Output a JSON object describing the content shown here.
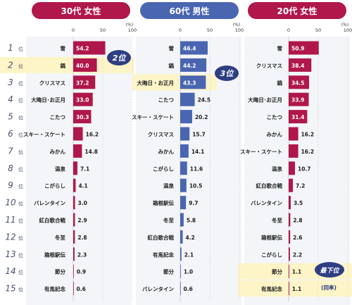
{
  "rank_suffix": "位",
  "ranks": [
    "1",
    "2",
    "3",
    "4",
    "5",
    "6",
    "7",
    "8",
    "9",
    "10",
    "11",
    "12",
    "13",
    "14",
    "15"
  ],
  "axis": {
    "ticks": [
      "0",
      "50",
      "100"
    ],
    "unit": "(%)"
  },
  "colors": {
    "panel1": "#b0174a",
    "panel2": "#4a66b1",
    "panel3": "#b0174a",
    "rank_text": "#4a5270",
    "grid": "#cfd3dc",
    "highlight": "#fdf4c7",
    "callout": "#2e3e82",
    "panel_bg": "#f4f5f8"
  },
  "callouts": [
    "2位",
    "3位",
    "最下位",
    "(同率)"
  ],
  "chart_data": [
    {
      "type": "bar",
      "title": "30代 女性",
      "xlim": [
        0,
        100
      ],
      "categories": [
        "雪",
        "鍋",
        "クリスマス",
        "大晦日･お正月",
        "こたつ",
        "スキー・スケート",
        "みかん",
        "温泉",
        "こがらし",
        "バレンタイン",
        "紅白歌合戦",
        "冬至",
        "箱根駅伝",
        "節分",
        "有馬記念"
      ],
      "values": [
        54.2,
        40.0,
        37.2,
        33.0,
        30.3,
        16.2,
        14.8,
        7.1,
        4.1,
        3.0,
        2.9,
        2.8,
        2.3,
        0.9,
        0.6
      ],
      "value_labels": [
        "54.2",
        "40.0",
        "37.2",
        "33.0",
        "30.3",
        "16.2",
        "14.8",
        "7.1",
        "4.1",
        "3.0",
        "2.9",
        "2.8",
        "2.3",
        "0.9",
        "0.6"
      ]
    },
    {
      "type": "bar",
      "title": "60代 男性",
      "xlim": [
        0,
        100
      ],
      "categories": [
        "雪",
        "鍋",
        "大晦日・お正月",
        "こたつ",
        "スキー・スケート",
        "クリスマス",
        "みかん",
        "こがらし",
        "温泉",
        "箱根駅伝",
        "冬至",
        "紅白歌合戦",
        "有馬記念",
        "節分",
        "バレンタイン"
      ],
      "values": [
        46.4,
        44.2,
        43.3,
        24.5,
        20.2,
        15.7,
        14.1,
        11.6,
        10.5,
        9.7,
        5.8,
        4.2,
        2.1,
        1.0,
        0.6
      ],
      "value_labels": [
        "46.4",
        "44.2",
        "43.3",
        "24.5",
        "20.2",
        "15.7",
        "14.1",
        "11.6",
        "10.5",
        "9.7",
        "5.8",
        "4.2",
        "2.1",
        "1.0",
        "0.6"
      ]
    },
    {
      "type": "bar",
      "title": "20代 女性",
      "xlim": [
        0,
        100
      ],
      "categories": [
        "雪",
        "クリスマス",
        "鍋",
        "大晦日･お正月",
        "こたつ",
        "みかん",
        "スキー・スケート",
        "温泉",
        "紅白歌合戦",
        "バレンタイン",
        "冬至",
        "箱根駅伝",
        "こがらし",
        "節分",
        "有馬記念"
      ],
      "values": [
        50.9,
        38.4,
        34.5,
        33.9,
        31.4,
        16.2,
        16.2,
        10.7,
        7.2,
        3.5,
        2.8,
        2.6,
        2.2,
        1.1,
        1.1
      ],
      "value_labels": [
        "50.9",
        "38.4",
        "34.5",
        "33.9",
        "31.4",
        "16.2",
        "16.2",
        "10.7",
        "7.2",
        "3.5",
        "2.8",
        "2.6",
        "2.2",
        "1.1",
        "1.1"
      ]
    }
  ]
}
